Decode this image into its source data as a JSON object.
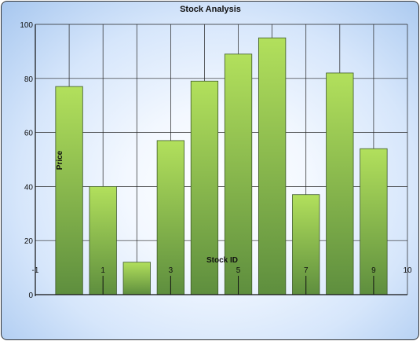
{
  "chart_data": {
    "type": "bar",
    "title": "Stock Analysis",
    "xlabel": "Stock ID",
    "ylabel": "Price",
    "x": [
      0,
      1,
      2,
      3,
      4,
      5,
      6,
      7,
      8,
      9
    ],
    "values": [
      77,
      40,
      12,
      57,
      79,
      89,
      95,
      37,
      82,
      54
    ],
    "xlim": [
      -1,
      10
    ],
    "ylim": [
      0,
      100
    ],
    "x_ticks": [
      -1,
      1,
      3,
      5,
      7,
      9,
      10
    ],
    "y_ticks": [
      0,
      20,
      40,
      60,
      80,
      100
    ],
    "grid": true,
    "colors": {
      "bar_top": "#b2e05c",
      "bar_bottom": "#5e8e3e",
      "bar_stroke": "#3e5a2a",
      "grid": "#222222"
    }
  }
}
